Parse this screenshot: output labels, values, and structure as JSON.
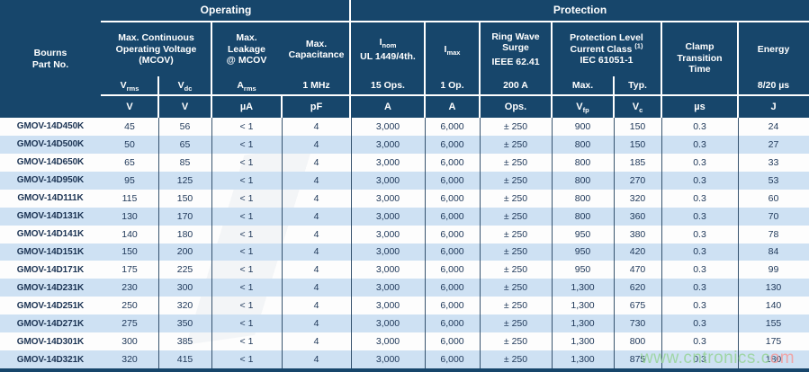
{
  "header": {
    "part_col": {
      "l1": "Bourns",
      "l2": "Part No."
    },
    "sections": {
      "operating": "Operating",
      "protection": "Protection"
    },
    "groups": {
      "mcov": {
        "l1": "Max. Continuous",
        "l2": "Operating Voltage",
        "l3": "(MCOV)"
      },
      "leakage": {
        "l1": "Max.",
        "l2": "Leakage",
        "l3": "@ MCOV"
      },
      "capacitance": {
        "l1": "Max.",
        "l2": "Capacitance"
      },
      "inom": {
        "base": "I",
        "sub": "nom",
        "l2": "UL 1449/4th."
      },
      "imax": {
        "base": "I",
        "sub": "max"
      },
      "ringwave": {
        "l1": "Ring Wave",
        "l2": "Surge",
        "l3": "IEEE 62.41"
      },
      "protlevel": {
        "l1": "Protection Level",
        "l2": "Current Class",
        "sup": "(1)",
        "l3": "IEC 61051-1"
      },
      "clamp": {
        "l1": "Clamp",
        "l2": "Transition",
        "l3": "Time"
      },
      "energy": {
        "l1": "Energy"
      }
    },
    "sub_labels": {
      "vrms_base": "V",
      "vrms_sub": "rms",
      "vdc_base": "V",
      "vdc_sub": "dc",
      "arms_base": "A",
      "arms_sub": "rms",
      "mhz": "1 MHz",
      "inom_ops": "15 Ops.",
      "imax_ops": "1 Op.",
      "ring_a": "200 A",
      "max": "Max.",
      "typ": "Typ.",
      "energy_wave": "8/20 µs"
    },
    "units": {
      "vrms": "V",
      "vdc": "V",
      "arms": "µA",
      "cap": "pF",
      "inom": "A",
      "imax": "A",
      "ring": "Ops.",
      "vfp_base": "V",
      "vfp_sub": "fp",
      "vc_base": "V",
      "vc_sub": "c",
      "clamp": "µs",
      "energy": "J"
    }
  },
  "rows": [
    {
      "part": "GMOV-14D450K",
      "vrms": "45",
      "vdc": "56",
      "leak": "< 1",
      "cap": "4",
      "inom": "3,000",
      "imax": "6,000",
      "ring": "± 250",
      "vfp": "900",
      "vc": "150",
      "clamp": "0.3",
      "energy": "24"
    },
    {
      "part": "GMOV-14D500K",
      "vrms": "50",
      "vdc": "65",
      "leak": "< 1",
      "cap": "4",
      "inom": "3,000",
      "imax": "6,000",
      "ring": "± 250",
      "vfp": "800",
      "vc": "150",
      "clamp": "0.3",
      "energy": "27"
    },
    {
      "part": "GMOV-14D650K",
      "vrms": "65",
      "vdc": "85",
      "leak": "< 1",
      "cap": "4",
      "inom": "3,000",
      "imax": "6,000",
      "ring": "± 250",
      "vfp": "800",
      "vc": "185",
      "clamp": "0.3",
      "energy": "33"
    },
    {
      "part": "GMOV-14D950K",
      "vrms": "95",
      "vdc": "125",
      "leak": "< 1",
      "cap": "4",
      "inom": "3,000",
      "imax": "6,000",
      "ring": "± 250",
      "vfp": "800",
      "vc": "270",
      "clamp": "0.3",
      "energy": "53"
    },
    {
      "part": "GMOV-14D111K",
      "vrms": "115",
      "vdc": "150",
      "leak": "< 1",
      "cap": "4",
      "inom": "3,000",
      "imax": "6,000",
      "ring": "± 250",
      "vfp": "800",
      "vc": "320",
      "clamp": "0.3",
      "energy": "60"
    },
    {
      "part": "GMOV-14D131K",
      "vrms": "130",
      "vdc": "170",
      "leak": "< 1",
      "cap": "4",
      "inom": "3,000",
      "imax": "6,000",
      "ring": "± 250",
      "vfp": "800",
      "vc": "360",
      "clamp": "0.3",
      "energy": "70"
    },
    {
      "part": "GMOV-14D141K",
      "vrms": "140",
      "vdc": "180",
      "leak": "< 1",
      "cap": "4",
      "inom": "3,000",
      "imax": "6,000",
      "ring": "± 250",
      "vfp": "950",
      "vc": "380",
      "clamp": "0.3",
      "energy": "78"
    },
    {
      "part": "GMOV-14D151K",
      "vrms": "150",
      "vdc": "200",
      "leak": "< 1",
      "cap": "4",
      "inom": "3,000",
      "imax": "6,000",
      "ring": "± 250",
      "vfp": "950",
      "vc": "420",
      "clamp": "0.3",
      "energy": "84"
    },
    {
      "part": "GMOV-14D171K",
      "vrms": "175",
      "vdc": "225",
      "leak": "< 1",
      "cap": "4",
      "inom": "3,000",
      "imax": "6,000",
      "ring": "± 250",
      "vfp": "950",
      "vc": "470",
      "clamp": "0.3",
      "energy": "99"
    },
    {
      "part": "GMOV-14D231K",
      "vrms": "230",
      "vdc": "300",
      "leak": "< 1",
      "cap": "4",
      "inom": "3,000",
      "imax": "6,000",
      "ring": "± 250",
      "vfp": "1,300",
      "vc": "620",
      "clamp": "0.3",
      "energy": "130"
    },
    {
      "part": "GMOV-14D251K",
      "vrms": "250",
      "vdc": "320",
      "leak": "< 1",
      "cap": "4",
      "inom": "3,000",
      "imax": "6,000",
      "ring": "± 250",
      "vfp": "1,300",
      "vc": "675",
      "clamp": "0.3",
      "energy": "140"
    },
    {
      "part": "GMOV-14D271K",
      "vrms": "275",
      "vdc": "350",
      "leak": "< 1",
      "cap": "4",
      "inom": "3,000",
      "imax": "6,000",
      "ring": "± 250",
      "vfp": "1,300",
      "vc": "730",
      "clamp": "0.3",
      "energy": "155"
    },
    {
      "part": "GMOV-14D301K",
      "vrms": "300",
      "vdc": "385",
      "leak": "< 1",
      "cap": "4",
      "inom": "3,000",
      "imax": "6,000",
      "ring": "± 250",
      "vfp": "1,300",
      "vc": "800",
      "clamp": "0.3",
      "energy": "175"
    },
    {
      "part": "GMOV-14D321K",
      "vrms": "320",
      "vdc": "415",
      "leak": "< 1",
      "cap": "4",
      "inom": "3,000",
      "imax": "6,000",
      "ring": "± 250",
      "vfp": "1,300",
      "vc": "875",
      "clamp": "0.3",
      "energy": "180"
    }
  ],
  "watermark": {
    "green": "www.cntronics.c",
    "pink": "om"
  },
  "colors": {
    "header_navy": "#17466B",
    "stripe_blue": "#CEE1F3",
    "text_navy": "#20395A"
  }
}
